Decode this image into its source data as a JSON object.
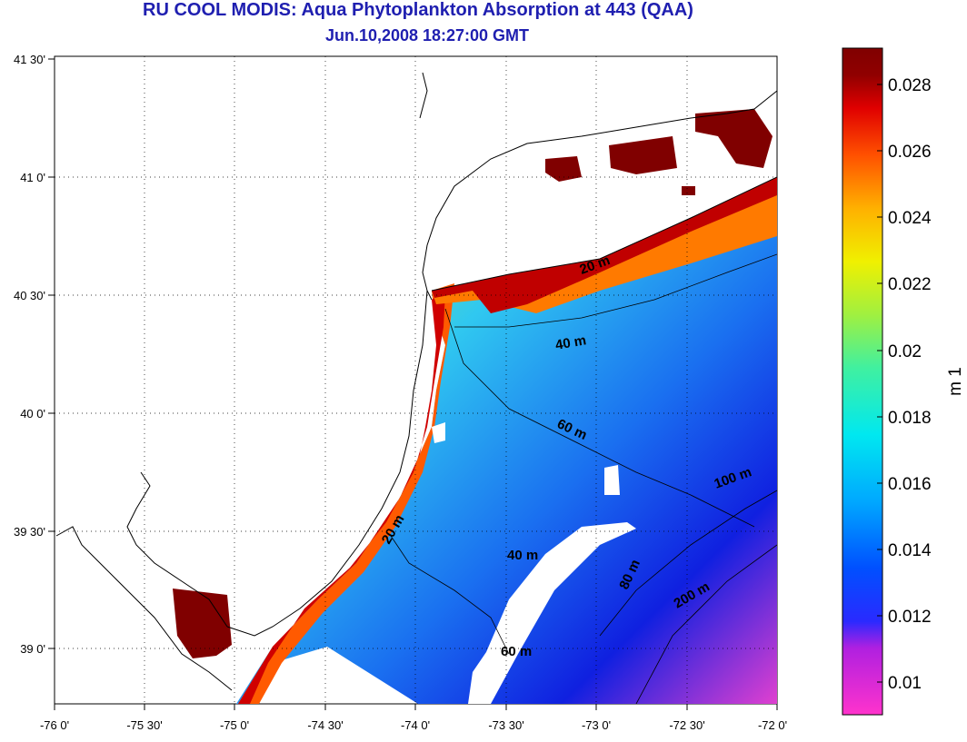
{
  "title": {
    "line1": "RU COOL MODIS: Aqua Phytoplankton Absorption at 443 (QAA)",
    "line2": "Jun.10,2008 18:27:00 GMT"
  },
  "axes": {
    "lon_ticks": [
      "-76 0'",
      "-75 30'",
      "-75 0'",
      "-74 30'",
      "-74 0'",
      "-73 30'",
      "-73 0'",
      "-72 30'",
      "-72 0'"
    ],
    "lat_ticks": [
      "39 0'",
      "39 30'",
      "40 0'",
      "40 30'",
      "41 0'",
      "41 30'"
    ]
  },
  "colorbar": {
    "unit": "m 1",
    "ticks": [
      "0.01",
      "0.012",
      "0.014",
      "0.016",
      "0.018",
      "0.02",
      "0.022",
      "0.024",
      "0.026",
      "0.028"
    ]
  },
  "contours": [
    "20 m",
    "40 m",
    "60 m",
    "20 m",
    "40 m",
    "60 m",
    "80 m",
    "100 m",
    "200 m"
  ],
  "colors": {
    "title": "#1f1fb0",
    "land": "#ffffff",
    "coastline": "#000000"
  }
}
